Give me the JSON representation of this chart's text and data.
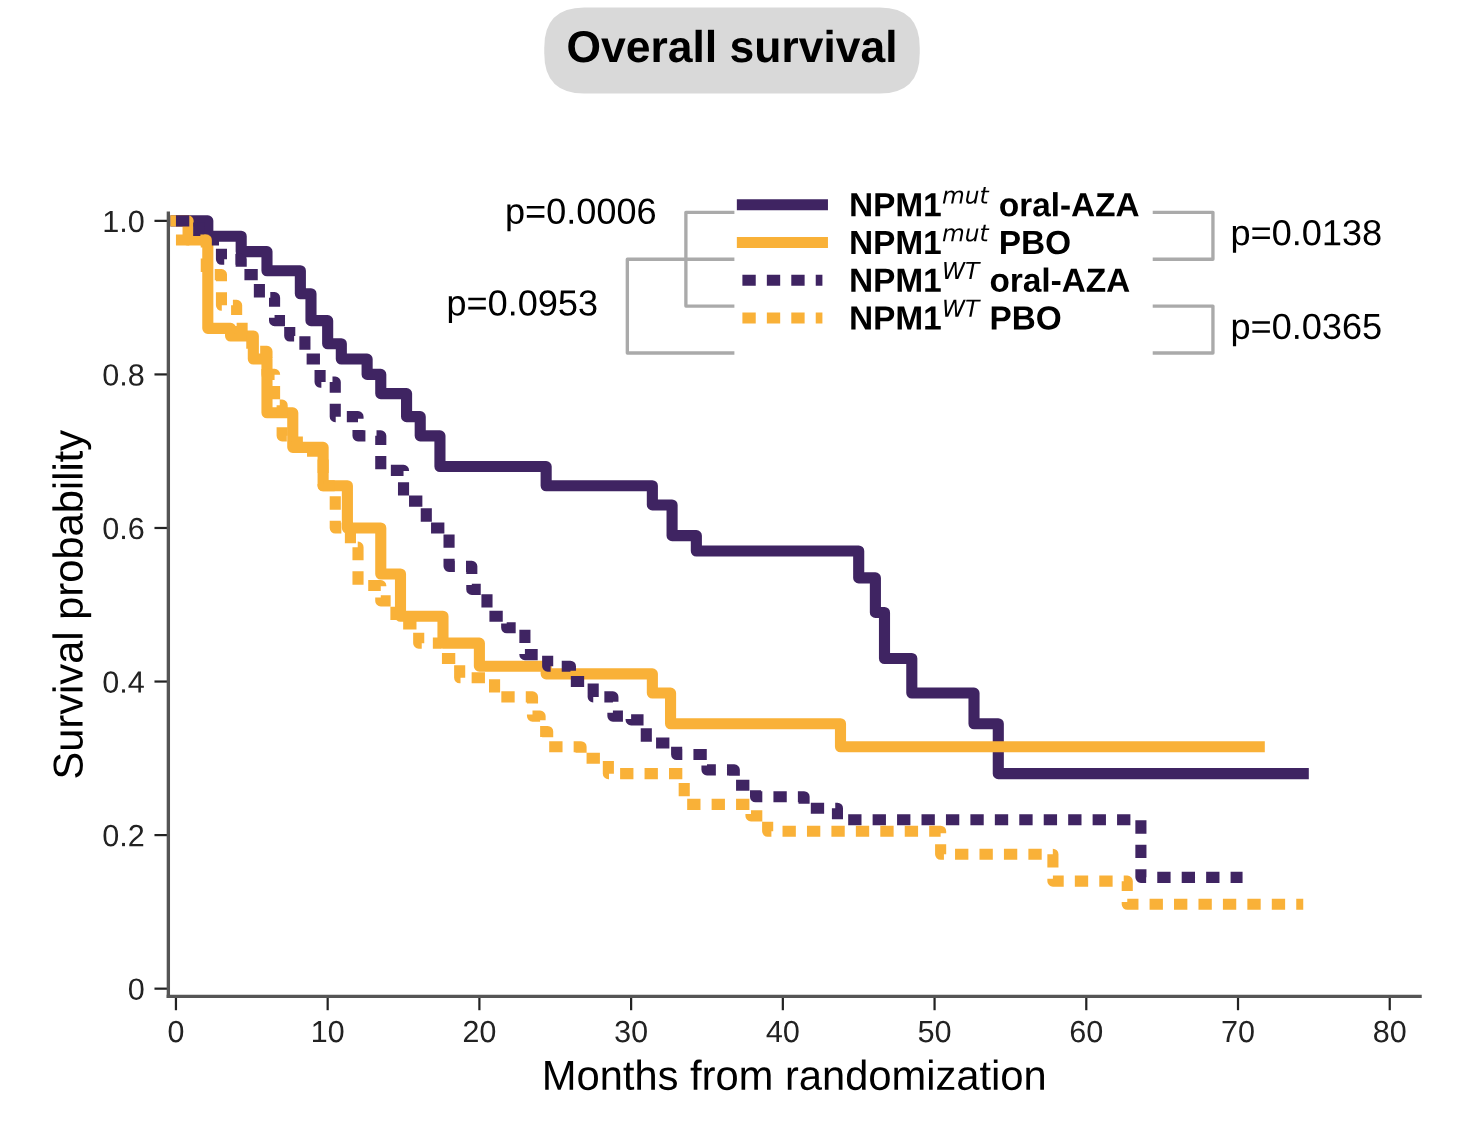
{
  "chart_data": {
    "type": "step",
    "title": "Overall survival",
    "xlabel": "Months from randomization",
    "ylabel": "Survival probability",
    "xlim": [
      -0.5,
      82
    ],
    "xticks": [
      0,
      10,
      20,
      30,
      40,
      50,
      60,
      70,
      80
    ],
    "ylim": [
      -0.01,
      1.01
    ],
    "yticks": [
      {
        "value": 0,
        "label": "0"
      },
      {
        "value": 0.2,
        "label": "0.2"
      },
      {
        "value": 0.4,
        "label": "0.4"
      },
      {
        "value": 0.6,
        "label": "0.6"
      },
      {
        "value": 0.8,
        "label": "0.8"
      },
      {
        "value": 1.0,
        "label": "1.0"
      }
    ],
    "grid": false,
    "legend": "top right",
    "annotations": [
      "p=0.0006",
      "p=0.0953",
      "p=0.0138",
      "p=0.0365"
    ],
    "series": [
      {
        "name": "NPM1$^{mut}$ oral-AZA",
        "color": "#3f2462",
        "line_style": "solid",
        "x": [
          0,
          2.1,
          4.3,
          6.0,
          8.2,
          8.9,
          10.0,
          10.9,
          12.6,
          13.5,
          15.2,
          16.1,
          17.4,
          24.4,
          31.4,
          32.7,
          34.3,
          45.0,
          46.1,
          46.7,
          48.5,
          52.6,
          54.2,
          74.3
        ],
        "values": [
          1.0,
          0.98,
          0.96,
          0.935,
          0.905,
          0.87,
          0.84,
          0.82,
          0.8,
          0.775,
          0.745,
          0.72,
          0.68,
          0.655,
          0.63,
          0.59,
          0.57,
          0.535,
          0.49,
          0.43,
          0.385,
          0.345,
          0.28,
          0.28
        ]
      },
      {
        "name": "NPM1$^{mut}$ PBO",
        "color": "#f9b138",
        "line_style": "solid",
        "x": [
          0,
          0.8,
          2.1,
          3.6,
          5.1,
          6.0,
          7.7,
          9.7,
          11.3,
          13.5,
          14.8,
          17.6,
          20.0,
          24.4,
          31.4,
          32.6,
          43.8,
          71.4
        ],
        "values": [
          1.0,
          0.975,
          0.86,
          0.85,
          0.82,
          0.75,
          0.705,
          0.655,
          0.6,
          0.54,
          0.485,
          0.45,
          0.42,
          0.41,
          0.385,
          0.345,
          0.315,
          0.315
        ]
      },
      {
        "name": "NPM1$^{WT}$ oral-AZA",
        "color": "#3f2462",
        "line_style": "dotted",
        "x": [
          0,
          1.5,
          3.0,
          4.3,
          5.5,
          6.5,
          7.5,
          8.5,
          9.5,
          10.5,
          12.0,
          13.5,
          15.0,
          16.5,
          18.0,
          19.5,
          20.5,
          21.8,
          23.0,
          24.5,
          26.0,
          27.5,
          28.8,
          30.0,
          31.0,
          33.0,
          35.0,
          36.8,
          38.2,
          41.4,
          43.6,
          63.6,
          70.3
        ],
        "values": [
          1.0,
          0.975,
          0.95,
          0.93,
          0.9,
          0.87,
          0.85,
          0.82,
          0.79,
          0.745,
          0.72,
          0.675,
          0.635,
          0.6,
          0.55,
          0.52,
          0.485,
          0.47,
          0.435,
          0.42,
          0.4,
          0.38,
          0.355,
          0.35,
          0.32,
          0.305,
          0.285,
          0.265,
          0.25,
          0.235,
          0.22,
          0.145,
          0.145
        ]
      },
      {
        "name": "NPM1$^{WT}$ PBO",
        "color": "#f9b138",
        "line_style": "dotted",
        "x": [
          0,
          2.0,
          3.0,
          4.0,
          5.0,
          6.0,
          6.5,
          7.0,
          8.0,
          9.7,
          10.5,
          11.5,
          12.0,
          13.5,
          14.5,
          16.0,
          17.5,
          18.7,
          21.0,
          23.5,
          24.0,
          24.5,
          26.7,
          28.5,
          33.5,
          37.9,
          39.0,
          50.4,
          57.8,
          62.7,
          74.3
        ],
        "values": [
          0.975,
          0.93,
          0.89,
          0.86,
          0.83,
          0.8,
          0.76,
          0.72,
          0.7,
          0.655,
          0.6,
          0.575,
          0.525,
          0.505,
          0.475,
          0.45,
          0.43,
          0.405,
          0.38,
          0.355,
          0.335,
          0.315,
          0.3,
          0.28,
          0.24,
          0.225,
          0.205,
          0.175,
          0.14,
          0.11,
          0.11
        ]
      }
    ]
  }
}
